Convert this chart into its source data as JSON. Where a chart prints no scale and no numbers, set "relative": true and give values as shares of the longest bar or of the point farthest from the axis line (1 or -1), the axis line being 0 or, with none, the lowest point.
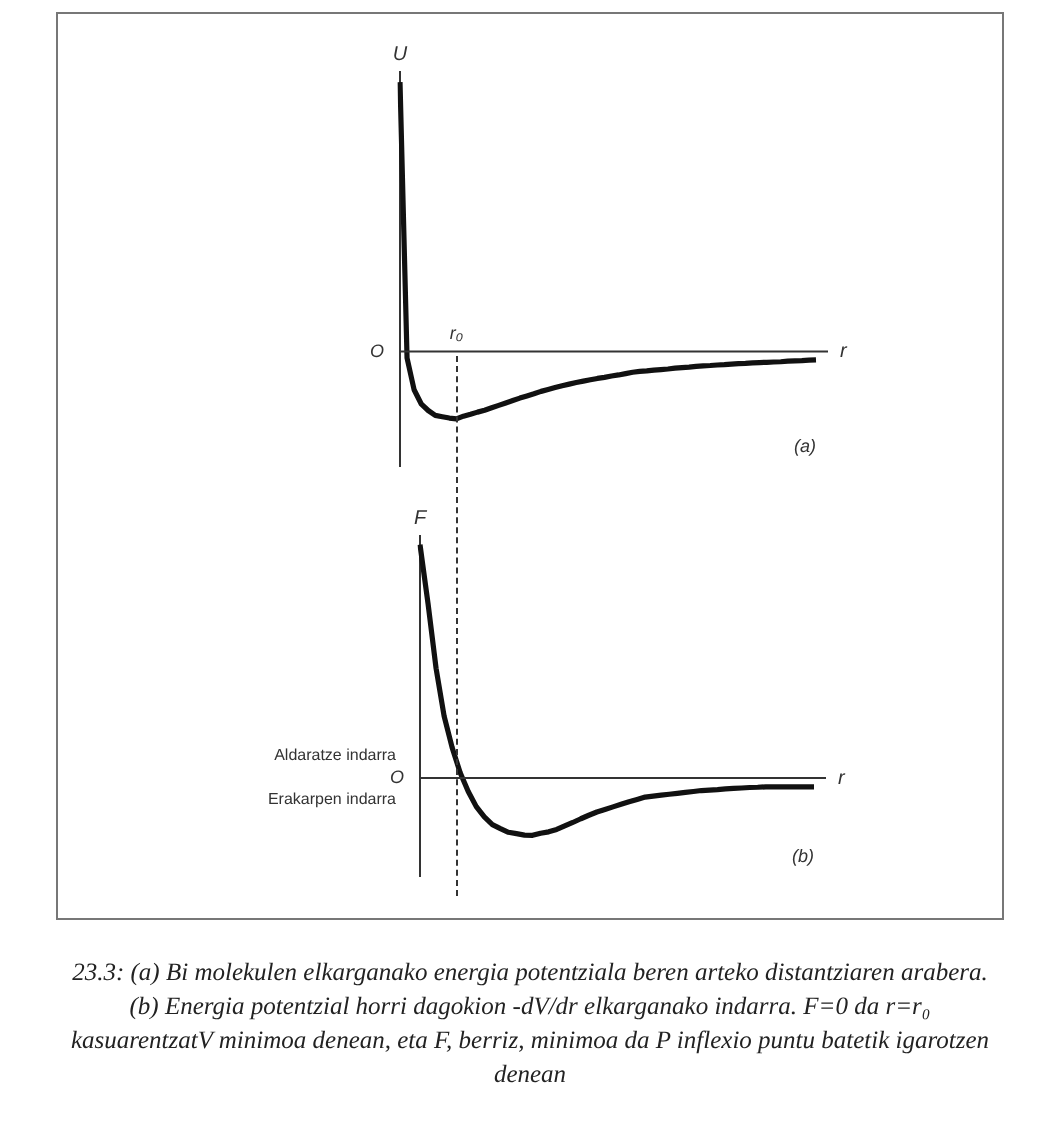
{
  "chart_data": [
    {
      "type": "line",
      "title": "(a)",
      "ylabel": "U",
      "xlabel": "r",
      "relative": true,
      "tick_labels": false,
      "marker": "none",
      "line_style": "solid",
      "categories": [
        null,
        null,
        null,
        null,
        null,
        null,
        null,
        null,
        null,
        null,
        null,
        null,
        null,
        null,
        null,
        null,
        null,
        null,
        null,
        null,
        null,
        null,
        null,
        null,
        null,
        null,
        null,
        null,
        null,
        null,
        null,
        null,
        null,
        null,
        null,
        null,
        null,
        null,
        null,
        null,
        null,
        null,
        null,
        null,
        null,
        null,
        null,
        null,
        null,
        null,
        null,
        null,
        null,
        null,
        null,
        null,
        null,
        null,
        null,
        null
      ],
      "series": [
        {
          "color": "#111111",
          "values": [
            1.0,
            -0.024,
            -0.142,
            -0.194,
            -0.219,
            -0.237,
            -0.242,
            -0.247,
            -0.25,
            -0.24,
            -0.233,
            -0.225,
            -0.218,
            -0.209,
            -0.2,
            -0.191,
            -0.182,
            -0.173,
            -0.165,
            -0.157,
            -0.148,
            -0.141,
            -0.134,
            -0.127,
            -0.121,
            -0.115,
            -0.11,
            -0.105,
            -0.1,
            -0.096,
            -0.091,
            -0.087,
            -0.082,
            -0.077,
            -0.074,
            -0.072,
            -0.069,
            -0.067,
            -0.065,
            -0.062,
            -0.06,
            -0.058,
            -0.055,
            -0.053,
            -0.052,
            -0.05,
            -0.049,
            -0.047,
            -0.045,
            -0.044,
            -0.042,
            -0.041,
            -0.04,
            -0.039,
            -0.038,
            -0.036,
            -0.035,
            -0.034,
            -0.032,
            -0.031
          ]
        }
      ],
      "annotations": [
        "r₀",
        "O"
      ]
    },
    {
      "type": "line",
      "title": "(b)",
      "ylabel": "F",
      "xlabel": "r",
      "relative": true,
      "tick_labels": false,
      "marker": "none",
      "line_style": "solid",
      "categories": [
        null,
        null,
        null,
        null,
        null,
        null,
        null,
        null,
        null,
        null,
        null,
        null,
        null,
        null,
        null,
        null,
        null,
        null,
        null,
        null,
        null,
        null,
        null,
        null,
        null,
        null,
        null,
        null,
        null,
        null,
        null,
        null,
        null,
        null,
        null,
        null,
        null,
        null,
        null,
        null,
        null,
        null,
        null,
        null,
        null,
        null,
        null,
        null,
        null,
        null
      ],
      "series": [
        {
          "color": "#111111",
          "values": [
            1.0,
            0.747,
            0.47,
            0.265,
            0.13,
            0.022,
            -0.058,
            -0.123,
            -0.167,
            -0.2,
            -0.217,
            -0.233,
            -0.239,
            -0.245,
            -0.246,
            -0.237,
            -0.231,
            -0.221,
            -0.206,
            -0.191,
            -0.175,
            -0.16,
            -0.146,
            -0.135,
            -0.124,
            -0.113,
            -0.102,
            -0.092,
            -0.082,
            -0.078,
            -0.074,
            -0.07,
            -0.066,
            -0.062,
            -0.058,
            -0.054,
            -0.052,
            -0.05,
            -0.047,
            -0.045,
            -0.043,
            -0.041,
            -0.04,
            -0.038,
            -0.038,
            -0.038,
            -0.038,
            -0.038,
            -0.038,
            -0.038
          ]
        }
      ],
      "annotations": [
        "O",
        "Aldaratze indarra",
        "Erakarpen indarra",
        "23.3: (a) Bi molekulen elkarganako energia potentziala beren arteko distantziaren arabera. (b) Energia potentzial horri dagokion -dV/dr elkarganako indarra. F=0 da r=r₀ kasuarentzatV minimoa denean, eta F, berriz, minimoa da P inflexio puntu batetik igarotzen denean"
      ]
    }
  ]
}
